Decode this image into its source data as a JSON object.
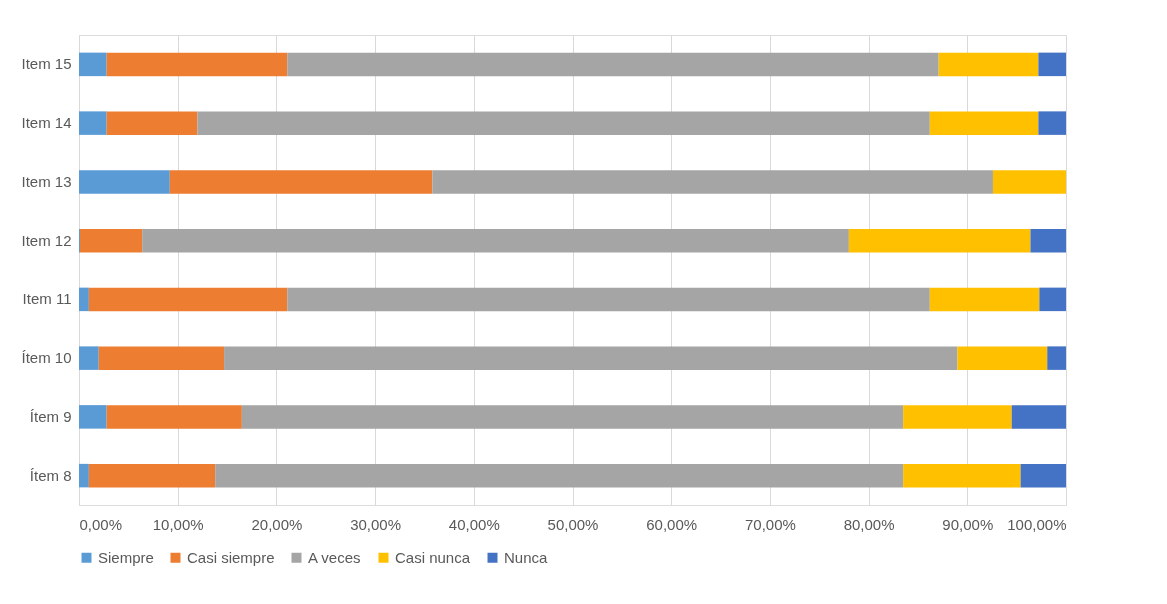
{
  "chart_data": {
    "type": "bar",
    "orientation": "horizontal",
    "stacked": true,
    "categories": [
      "Item 15",
      "Item 14",
      "Item 13",
      "Item 12",
      "Item 11",
      "Ítem 10",
      "Ítem 9",
      "Ítem 8"
    ],
    "series": [
      {
        "name": "Siempre",
        "color": "#5b9bd5",
        "values": [
          2.8,
          2.8,
          9.2,
          0.1,
          1.0,
          2.0,
          2.8,
          1.0
        ]
      },
      {
        "name": "Casi siempre",
        "color": "#ed7d31",
        "values": [
          18.3,
          9.2,
          26.6,
          6.3,
          20.1,
          12.7,
          13.7,
          12.8
        ]
      },
      {
        "name": "A veces",
        "color": "#a5a5a5",
        "values": [
          66.0,
          74.2,
          56.8,
          71.6,
          65.1,
          74.3,
          67.0,
          69.7
        ]
      },
      {
        "name": "Casi nunca",
        "color": "#ffc000",
        "values": [
          10.1,
          11.0,
          7.4,
          18.4,
          11.1,
          9.1,
          11.0,
          11.9
        ]
      },
      {
        "name": "Nunca",
        "color": "#4472c4",
        "values": [
          2.8,
          2.8,
          0,
          3.6,
          2.7,
          1.9,
          5.5,
          4.6
        ]
      }
    ],
    "xlim": [
      0,
      100
    ],
    "xticks": [
      {
        "value": 0,
        "label": "0,00%"
      },
      {
        "value": 10,
        "label": "10,00%"
      },
      {
        "value": 20,
        "label": "20,00%"
      },
      {
        "value": 30,
        "label": "30,00%"
      },
      {
        "value": 40,
        "label": "40,00%"
      },
      {
        "value": 50,
        "label": "50,00%"
      },
      {
        "value": 60,
        "label": "60,00%"
      },
      {
        "value": 70,
        "label": "70,00%"
      },
      {
        "value": 80,
        "label": "80,00%"
      },
      {
        "value": 90,
        "label": "90,00%"
      },
      {
        "value": 100,
        "label": "100,00%"
      }
    ],
    "grid": "x",
    "legend": "bottom"
  }
}
